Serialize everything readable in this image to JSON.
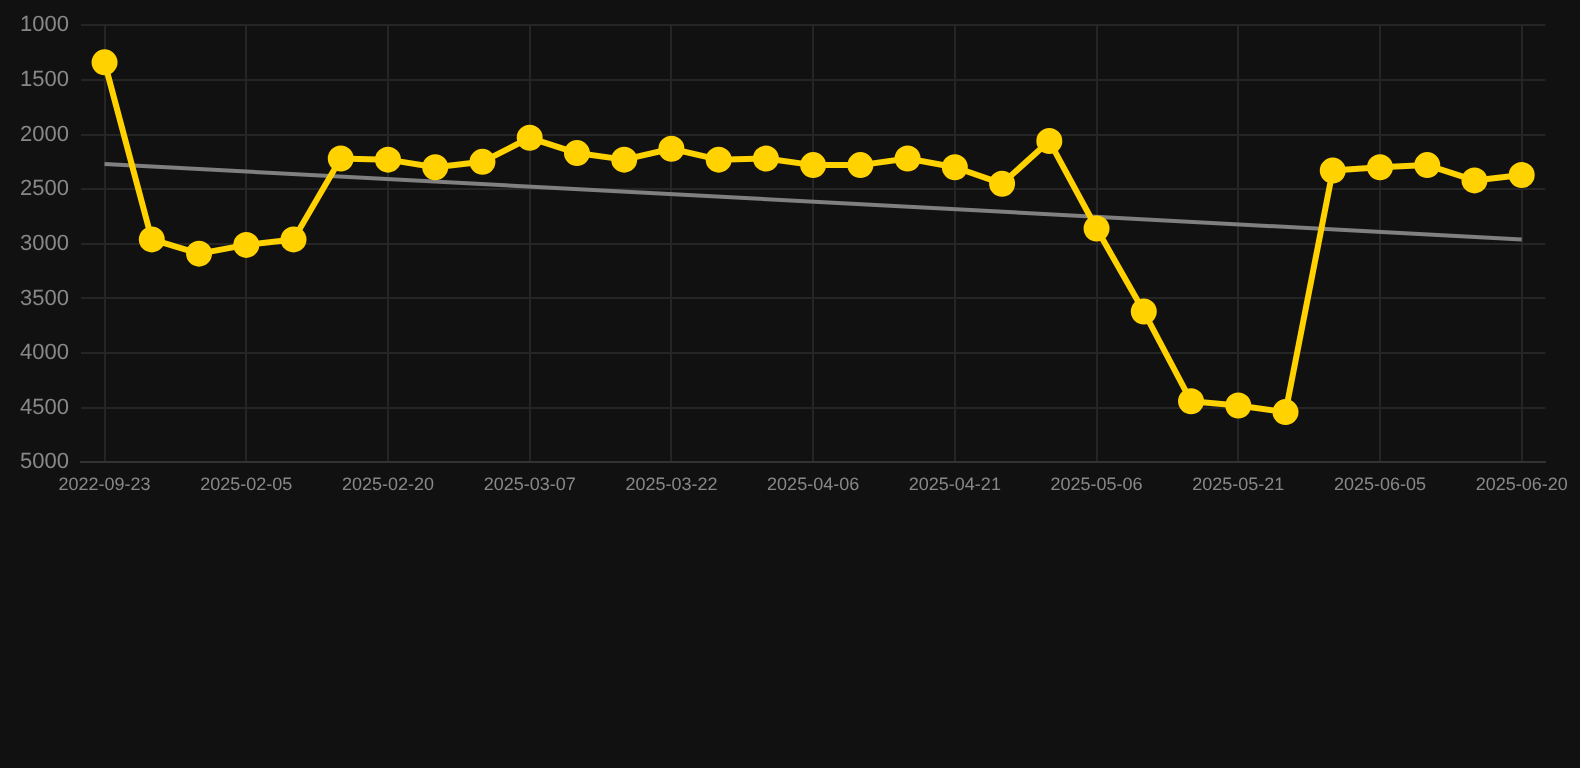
{
  "chart_data": {
    "type": "line",
    "categories": [
      "2022-09-23",
      null,
      null,
      "2025-02-05",
      null,
      null,
      "2025-02-20",
      null,
      null,
      "2025-03-07",
      null,
      null,
      "2025-03-22",
      null,
      null,
      "2025-04-06",
      null,
      null,
      "2025-04-21",
      null,
      null,
      "2025-05-06",
      null,
      null,
      "2025-05-21",
      null,
      null,
      "2025-06-05",
      null,
      null,
      "2025-06-20"
    ],
    "series": [
      {
        "color": "#ffd200",
        "marker": "circle",
        "values": [
          1340,
          2960,
          3090,
          3010,
          2960,
          2220,
          2230,
          2300,
          2250,
          2030,
          2170,
          2230,
          2130,
          2230,
          2220,
          2280,
          2280,
          2220,
          2300,
          2450,
          2060,
          2860,
          3620,
          4440,
          4480,
          4540,
          2330,
          2300,
          2280,
          2420,
          2370
        ]
      },
      {
        "type": "line",
        "color": "#808080",
        "marker": "none",
        "values": [
          2270,
          null,
          null,
          null,
          null,
          null,
          null,
          null,
          null,
          null,
          null,
          null,
          null,
          null,
          null,
          null,
          null,
          null,
          null,
          null,
          null,
          null,
          null,
          null,
          null,
          null,
          null,
          null,
          null,
          null,
          2960
        ]
      }
    ],
    "ylim": [
      5000,
      1000
    ],
    "yticks": [
      1000,
      1500,
      2000,
      2500,
      3000,
      3500,
      4000,
      4500,
      5000
    ],
    "grid": true,
    "legend": false
  }
}
